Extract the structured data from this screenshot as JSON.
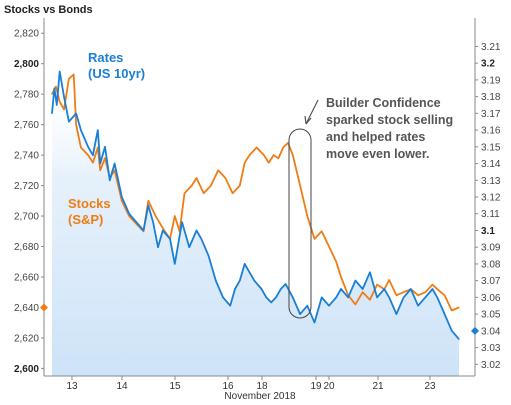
{
  "chart_data": {
    "type": "line",
    "title": "Stocks vs Bonds",
    "xlabel": "November 2018",
    "x_ticks": [
      "13",
      "14",
      "15",
      "16",
      "18",
      "19",
      "20",
      "21",
      "23"
    ],
    "y_left": {
      "ylim": [
        2595,
        2830
      ],
      "ticks": [
        "2,820",
        "2,800",
        "2,780",
        "2,760",
        "2,740",
        "2,720",
        "2,700",
        "2,680",
        "2,660",
        "2,640",
        "2,620",
        "2,600"
      ],
      "tick_values": [
        2820,
        2800,
        2780,
        2760,
        2740,
        2720,
        2700,
        2680,
        2660,
        2640,
        2620,
        2600
      ],
      "bold_ticks": [
        "2,800",
        "2,600"
      ],
      "marker_value": 2640
    },
    "y_right": {
      "ylim": [
        3.013,
        3.227
      ],
      "ticks": [
        "3.21",
        "3.2",
        "3.19",
        "3.18",
        "3.17",
        "3.16",
        "3.15",
        "3.14",
        "3.13",
        "3.12",
        "3.11",
        "3.1",
        "3.09",
        "3.08",
        "3.07",
        "3.06",
        "3.05",
        "3.04",
        "3.03",
        "3.02"
      ],
      "tick_values": [
        3.21,
        3.2,
        3.19,
        3.18,
        3.17,
        3.16,
        3.15,
        3.14,
        3.13,
        3.12,
        3.11,
        3.1,
        3.09,
        3.08,
        3.07,
        3.06,
        3.05,
        3.04,
        3.03,
        3.02
      ],
      "bold_ticks": [
        "3.2",
        "3.1"
      ],
      "marker_value": 3.04
    },
    "grid": false,
    "series": [
      {
        "name": "Rates",
        "label_lines": [
          "Rates",
          "(US 10yr)"
        ],
        "axis": "right",
        "color": "#1a7fd6",
        "x": [
          0,
          0.05,
          0.1,
          0.16,
          0.25,
          0.35,
          0.5,
          0.6,
          0.75,
          0.85,
          0.95,
          1.0,
          1.1,
          1.2,
          1.3,
          1.45,
          1.6,
          1.75,
          1.9,
          2.0,
          2.1,
          2.2,
          2.3,
          2.45,
          2.55,
          2.7,
          2.85,
          3.0,
          3.1,
          3.25,
          3.4,
          3.55,
          3.7,
          3.8,
          3.9,
          4.0,
          4.1,
          4.2,
          4.35,
          4.45,
          4.55,
          4.65,
          4.75,
          4.85,
          5.0,
          5.15,
          5.3,
          5.45,
          5.6,
          5.75,
          5.9,
          6.0,
          6.15,
          6.3,
          6.45,
          6.6,
          6.75,
          6.9,
          7.0,
          7.15,
          7.3,
          7.45,
          7.6,
          7.75,
          7.9,
          8.0,
          8.15,
          8.3,
          8.45
        ],
        "values": [
          3.17,
          3.185,
          3.175,
          3.195,
          3.18,
          3.165,
          3.17,
          3.16,
          3.15,
          3.145,
          3.16,
          3.14,
          3.15,
          3.13,
          3.14,
          3.12,
          3.11,
          3.105,
          3.1,
          3.115,
          3.105,
          3.09,
          3.1,
          3.095,
          3.08,
          3.105,
          3.09,
          3.1,
          3.095,
          3.085,
          3.07,
          3.06,
          3.055,
          3.065,
          3.07,
          3.08,
          3.075,
          3.07,
          3.065,
          3.06,
          3.057,
          3.06,
          3.065,
          3.068,
          3.06,
          3.05,
          3.055,
          3.045,
          3.06,
          3.055,
          3.06,
          3.065,
          3.06,
          3.07,
          3.065,
          3.075,
          3.06,
          3.065,
          3.06,
          3.05,
          3.06,
          3.065,
          3.055,
          3.06,
          3.065,
          3.06,
          3.05,
          3.04,
          3.035
        ]
      },
      {
        "name": "Stocks",
        "label_lines": [
          "Stocks",
          "(S&P)"
        ],
        "axis": "left",
        "color": "#ef7d14",
        "x": [
          0,
          0.08,
          0.16,
          0.25,
          0.35,
          0.45,
          0.5,
          0.6,
          0.75,
          0.85,
          0.95,
          1.0,
          1.1,
          1.2,
          1.3,
          1.45,
          1.6,
          1.75,
          1.9,
          2.0,
          2.15,
          2.3,
          2.45,
          2.55,
          2.65,
          2.75,
          2.9,
          3.0,
          3.15,
          3.3,
          3.45,
          3.6,
          3.75,
          3.9,
          4.0,
          4.1,
          4.25,
          4.4,
          4.5,
          4.6,
          4.7,
          4.8,
          4.9,
          5.0,
          5.15,
          5.3,
          5.45,
          5.6,
          5.75,
          5.9,
          6.0,
          6.15,
          6.3,
          6.45,
          6.6,
          6.75,
          6.9,
          7.0,
          7.15,
          7.3,
          7.45,
          7.6,
          7.75,
          7.9,
          8.0,
          8.15,
          8.3,
          8.45
        ],
        "values": [
          2780,
          2785,
          2775,
          2770,
          2790,
          2793,
          2760,
          2745,
          2740,
          2735,
          2745,
          2730,
          2738,
          2725,
          2730,
          2710,
          2700,
          2695,
          2690,
          2710,
          2700,
          2692,
          2685,
          2700,
          2690,
          2715,
          2720,
          2725,
          2715,
          2720,
          2730,
          2725,
          2715,
          2720,
          2735,
          2740,
          2745,
          2740,
          2735,
          2740,
          2738,
          2745,
          2748,
          2740,
          2720,
          2700,
          2685,
          2690,
          2680,
          2670,
          2660,
          2648,
          2642,
          2650,
          2645,
          2655,
          2652,
          2658,
          2648,
          2650,
          2652,
          2648,
          2650,
          2655,
          2652,
          2648,
          2638,
          2640
        ]
      }
    ],
    "annotation": [
      "Builder Confidence",
      "sparked stock selling",
      "and helped rates",
      "move even lower."
    ]
  }
}
